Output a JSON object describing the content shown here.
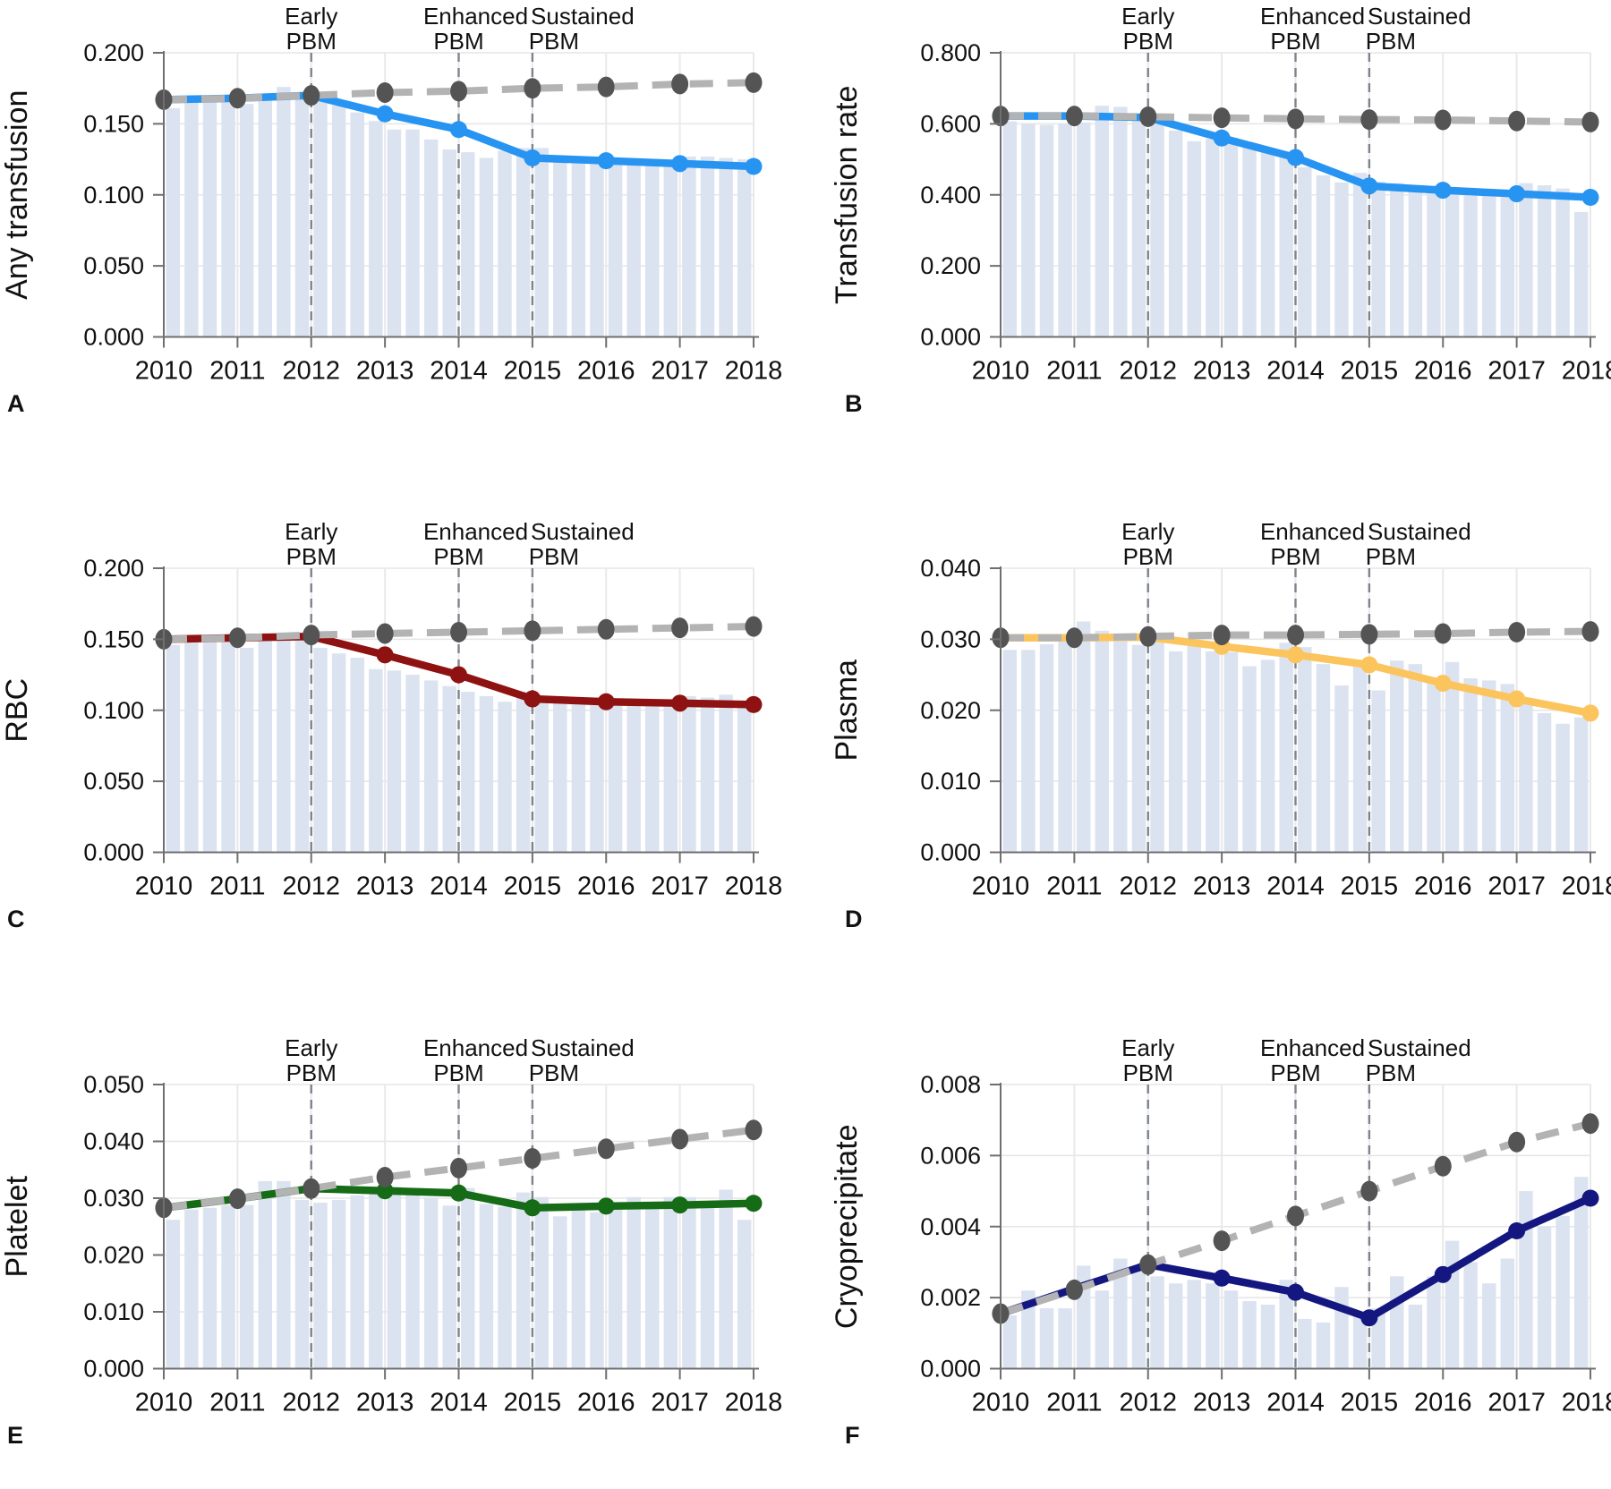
{
  "figure": {
    "years": [
      "2010",
      "2011",
      "2012",
      "2013",
      "2014",
      "2015",
      "2016",
      "2017",
      "2018"
    ],
    "bars_per_year": 4,
    "interventions": [
      {
        "line1": "Early",
        "line2": "PBM",
        "year": 2012
      },
      {
        "line1": "Enhanced",
        "line2": "PBM",
        "year": 2014
      },
      {
        "line1": "Sustained",
        "line2": "PBM",
        "year": 2015
      }
    ],
    "colors": {
      "bar": "#dce3f0",
      "grid": "#e5e5e5",
      "axis": "#6f6f6f",
      "dashed_line": "#b3b3b3",
      "dashed_dot": "#545454",
      "intervention_line": "#7d848d",
      "text": "#111111"
    }
  },
  "chart_data": [
    {
      "panel_letter": "A",
      "type": "bar+line",
      "ylabel": "Any transfusion",
      "ylim": [
        0,
        0.2
      ],
      "ytick_step": 0.05,
      "line_color": "#2794f2",
      "series": [
        {
          "name": "observed",
          "values": [
            0.167,
            0.168,
            0.17,
            0.157,
            0.146,
            0.126,
            0.124,
            0.122,
            0.12
          ]
        },
        {
          "name": "expected_pre_pbm_trend",
          "values": [
            0.167,
            0.168,
            0.17,
            0.172,
            0.173,
            0.175,
            0.176,
            0.178,
            0.179
          ]
        }
      ],
      "quarterly_bars": [
        0.161,
        0.166,
        0.167,
        0.167,
        0.164,
        0.17,
        0.176,
        0.171,
        0.17,
        0.163,
        0.158,
        0.152,
        0.146,
        0.146,
        0.139,
        0.132,
        0.13,
        0.126,
        0.131,
        0.133,
        0.133,
        0.126,
        0.124,
        0.123,
        0.122,
        0.121,
        0.123,
        0.124,
        0.127,
        0.127,
        0.126,
        0.125
      ]
    },
    {
      "panel_letter": "B",
      "type": "bar+line",
      "ylabel": "Transfusion rate",
      "ylim": [
        0,
        0.8
      ],
      "ytick_step": 0.2,
      "line_color": "#2794f2",
      "series": [
        {
          "name": "observed",
          "values": [
            0.622,
            0.622,
            0.618,
            0.56,
            0.505,
            0.425,
            0.413,
            0.403,
            0.393
          ]
        },
        {
          "name": "expected_pre_pbm_trend",
          "values": [
            0.622,
            0.622,
            0.62,
            0.617,
            0.614,
            0.612,
            0.611,
            0.608,
            0.605
          ]
        }
      ],
      "quarterly_bars": [
        0.607,
        0.601,
        0.597,
        0.601,
        0.604,
        0.651,
        0.648,
        0.611,
        0.609,
        0.581,
        0.551,
        0.558,
        0.561,
        0.534,
        0.522,
        0.513,
        0.478,
        0.455,
        0.435,
        0.462,
        0.437,
        0.433,
        0.427,
        0.417,
        0.422,
        0.417,
        0.412,
        0.407,
        0.433,
        0.427,
        0.418,
        0.352
      ]
    },
    {
      "panel_letter": "C",
      "type": "bar+line",
      "ylabel": "RBC",
      "ylim": [
        0,
        0.2
      ],
      "ytick_step": 0.05,
      "line_color": "#8e1212",
      "series": [
        {
          "name": "observed",
          "values": [
            0.15,
            0.151,
            0.152,
            0.139,
            0.125,
            0.108,
            0.106,
            0.105,
            0.104
          ]
        },
        {
          "name": "expected_pre_pbm_trend",
          "values": [
            0.15,
            0.151,
            0.153,
            0.154,
            0.155,
            0.156,
            0.157,
            0.158,
            0.159
          ]
        }
      ],
      "quarterly_bars": [
        0.146,
        0.149,
        0.149,
        0.149,
        0.144,
        0.149,
        0.15,
        0.15,
        0.144,
        0.14,
        0.137,
        0.129,
        0.128,
        0.125,
        0.121,
        0.117,
        0.113,
        0.11,
        0.106,
        0.113,
        0.108,
        0.106,
        0.104,
        0.104,
        0.104,
        0.104,
        0.105,
        0.106,
        0.11,
        0.109,
        0.111,
        0.102
      ]
    },
    {
      "panel_letter": "D",
      "type": "bar+line",
      "ylabel": "Plasma",
      "ylim": [
        0,
        0.04
      ],
      "ytick_step": 0.01,
      "line_color": "#fbc45d",
      "series": [
        {
          "name": "observed",
          "values": [
            0.0302,
            0.0302,
            0.0303,
            0.029,
            0.0278,
            0.0264,
            0.0238,
            0.0216,
            0.0196
          ]
        },
        {
          "name": "expected_pre_pbm_trend",
          "values": [
            0.0302,
            0.0302,
            0.0304,
            0.0306,
            0.0306,
            0.0307,
            0.0308,
            0.031,
            0.0311
          ]
        }
      ],
      "quarterly_bars": [
        0.0285,
        0.0285,
        0.0293,
        0.0305,
        0.0325,
        0.0312,
        0.0297,
        0.0292,
        0.0305,
        0.0283,
        0.031,
        0.0283,
        0.0282,
        0.0262,
        0.0271,
        0.0295,
        0.0289,
        0.0265,
        0.0235,
        0.027,
        0.0228,
        0.027,
        0.0265,
        0.024,
        0.0268,
        0.0245,
        0.0242,
        0.0237,
        0.021,
        0.0196,
        0.0181,
        0.019
      ]
    },
    {
      "panel_letter": "E",
      "type": "bar+line",
      "ylabel": "Platelet",
      "ylim": [
        0,
        0.05
      ],
      "ytick_step": 0.01,
      "line_color": "#166b16",
      "series": [
        {
          "name": "observed",
          "values": [
            0.0283,
            0.0299,
            0.0317,
            0.0313,
            0.0309,
            0.0283,
            0.0286,
            0.0288,
            0.0291
          ]
        },
        {
          "name": "expected_pre_pbm_trend",
          "values": [
            0.0283,
            0.0299,
            0.0317,
            0.0337,
            0.0353,
            0.037,
            0.0387,
            0.0404,
            0.042
          ]
        }
      ],
      "quarterly_bars": [
        0.0262,
        0.028,
        0.0283,
        0.0288,
        0.0288,
        0.033,
        0.033,
        0.0297,
        0.0292,
        0.0297,
        0.0305,
        0.0315,
        0.032,
        0.0317,
        0.0301,
        0.0287,
        0.0318,
        0.029,
        0.0285,
        0.031,
        0.0302,
        0.0268,
        0.0288,
        0.0275,
        0.0282,
        0.0302,
        0.0287,
        0.0302,
        0.0302,
        0.0287,
        0.0315,
        0.0262
      ]
    },
    {
      "panel_letter": "F",
      "type": "bar+line",
      "ylabel": "Cryoprecipitate",
      "ylim": [
        0,
        0.008
      ],
      "ytick_step": 0.002,
      "line_color": "#14177f",
      "series": [
        {
          "name": "observed",
          "values": [
            0.00155,
            0.00225,
            0.00293,
            0.00255,
            0.00215,
            0.00143,
            0.00265,
            0.00388,
            0.0048
          ]
        },
        {
          "name": "expected_pre_pbm_trend",
          "values": [
            0.00155,
            0.00222,
            0.00293,
            0.0036,
            0.0043,
            0.005,
            0.0057,
            0.00638,
            0.0069
          ]
        }
      ],
      "quarterly_bars": [
        0.0015,
        0.0022,
        0.0017,
        0.0017,
        0.0029,
        0.0022,
        0.0031,
        0.0029,
        0.0026,
        0.0024,
        0.0025,
        0.0024,
        0.0022,
        0.0019,
        0.0018,
        0.0025,
        0.0014,
        0.0013,
        0.0023,
        0.0015,
        0.0017,
        0.0026,
        0.0018,
        0.0026,
        0.0036,
        0.003,
        0.0024,
        0.0031,
        0.005,
        0.004,
        0.0043,
        0.0054
      ]
    }
  ]
}
